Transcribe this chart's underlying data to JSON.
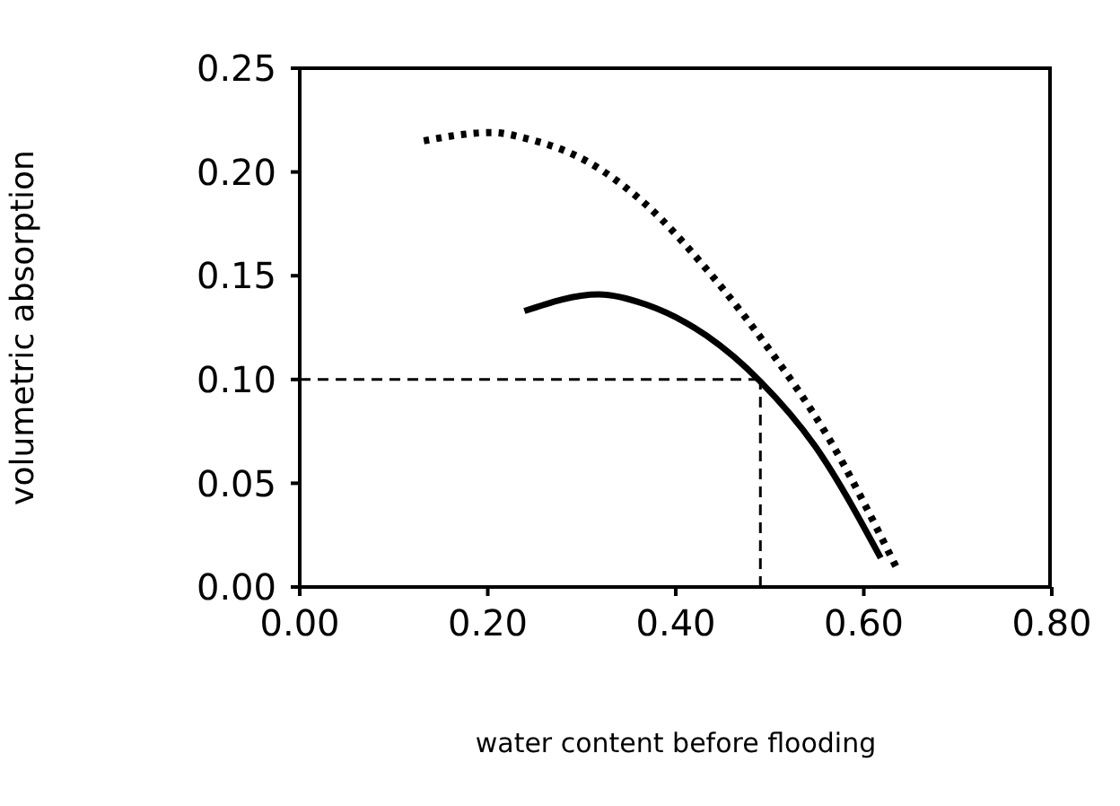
{
  "chart_data": {
    "type": "line",
    "xlabel": "water content before flooding",
    "ylabel": "volumetric absorption",
    "xlim": [
      0,
      0.8
    ],
    "xticks": [
      {
        "value": 0,
        "label": "0.00"
      },
      {
        "value": 0.2,
        "label": "0.20"
      },
      {
        "value": 0.4,
        "label": "0.40"
      },
      {
        "value": 0.6,
        "label": "0.60"
      },
      {
        "value": 0.8,
        "label": "0.80"
      }
    ],
    "ylim": [
      0,
      0.25
    ],
    "yticks": [
      {
        "value": 0,
        "label": "0.00"
      },
      {
        "value": 0.05,
        "label": "0.05"
      },
      {
        "value": 0.1,
        "label": "0.10"
      },
      {
        "value": 0.15,
        "label": "0.15"
      },
      {
        "value": 0.2,
        "label": "0.20"
      },
      {
        "value": 0.25,
        "label": "0.25"
      }
    ],
    "grid": false,
    "legend": false,
    "marker": "none",
    "series": [
      {
        "color": "#000000",
        "line_style": "dotted",
        "x": [
          0.132,
          0.204,
          0.242,
          0.306,
          0.369,
          0.433,
          0.497,
          0.561,
          0.634
        ],
        "values": [
          0.215,
          0.219,
          0.216,
          0.205,
          0.184,
          0.153,
          0.116,
          0.073,
          0.01
        ]
      },
      {
        "color": "#000000",
        "line_style": "solid",
        "x": [
          0.239,
          0.318,
          0.369,
          0.433,
          0.49,
          0.548,
          0.618
        ],
        "values": [
          0.133,
          0.141,
          0.136,
          0.121,
          0.099,
          0.068,
          0.014
        ]
      }
    ],
    "ref_lines": [
      {
        "axis": "y",
        "value": 0.1,
        "color": "#000000",
        "line_style": "dashed"
      },
      {
        "axis": "x",
        "value": 0.49,
        "color": "#000000",
        "line_style": "dashed"
      }
    ]
  }
}
